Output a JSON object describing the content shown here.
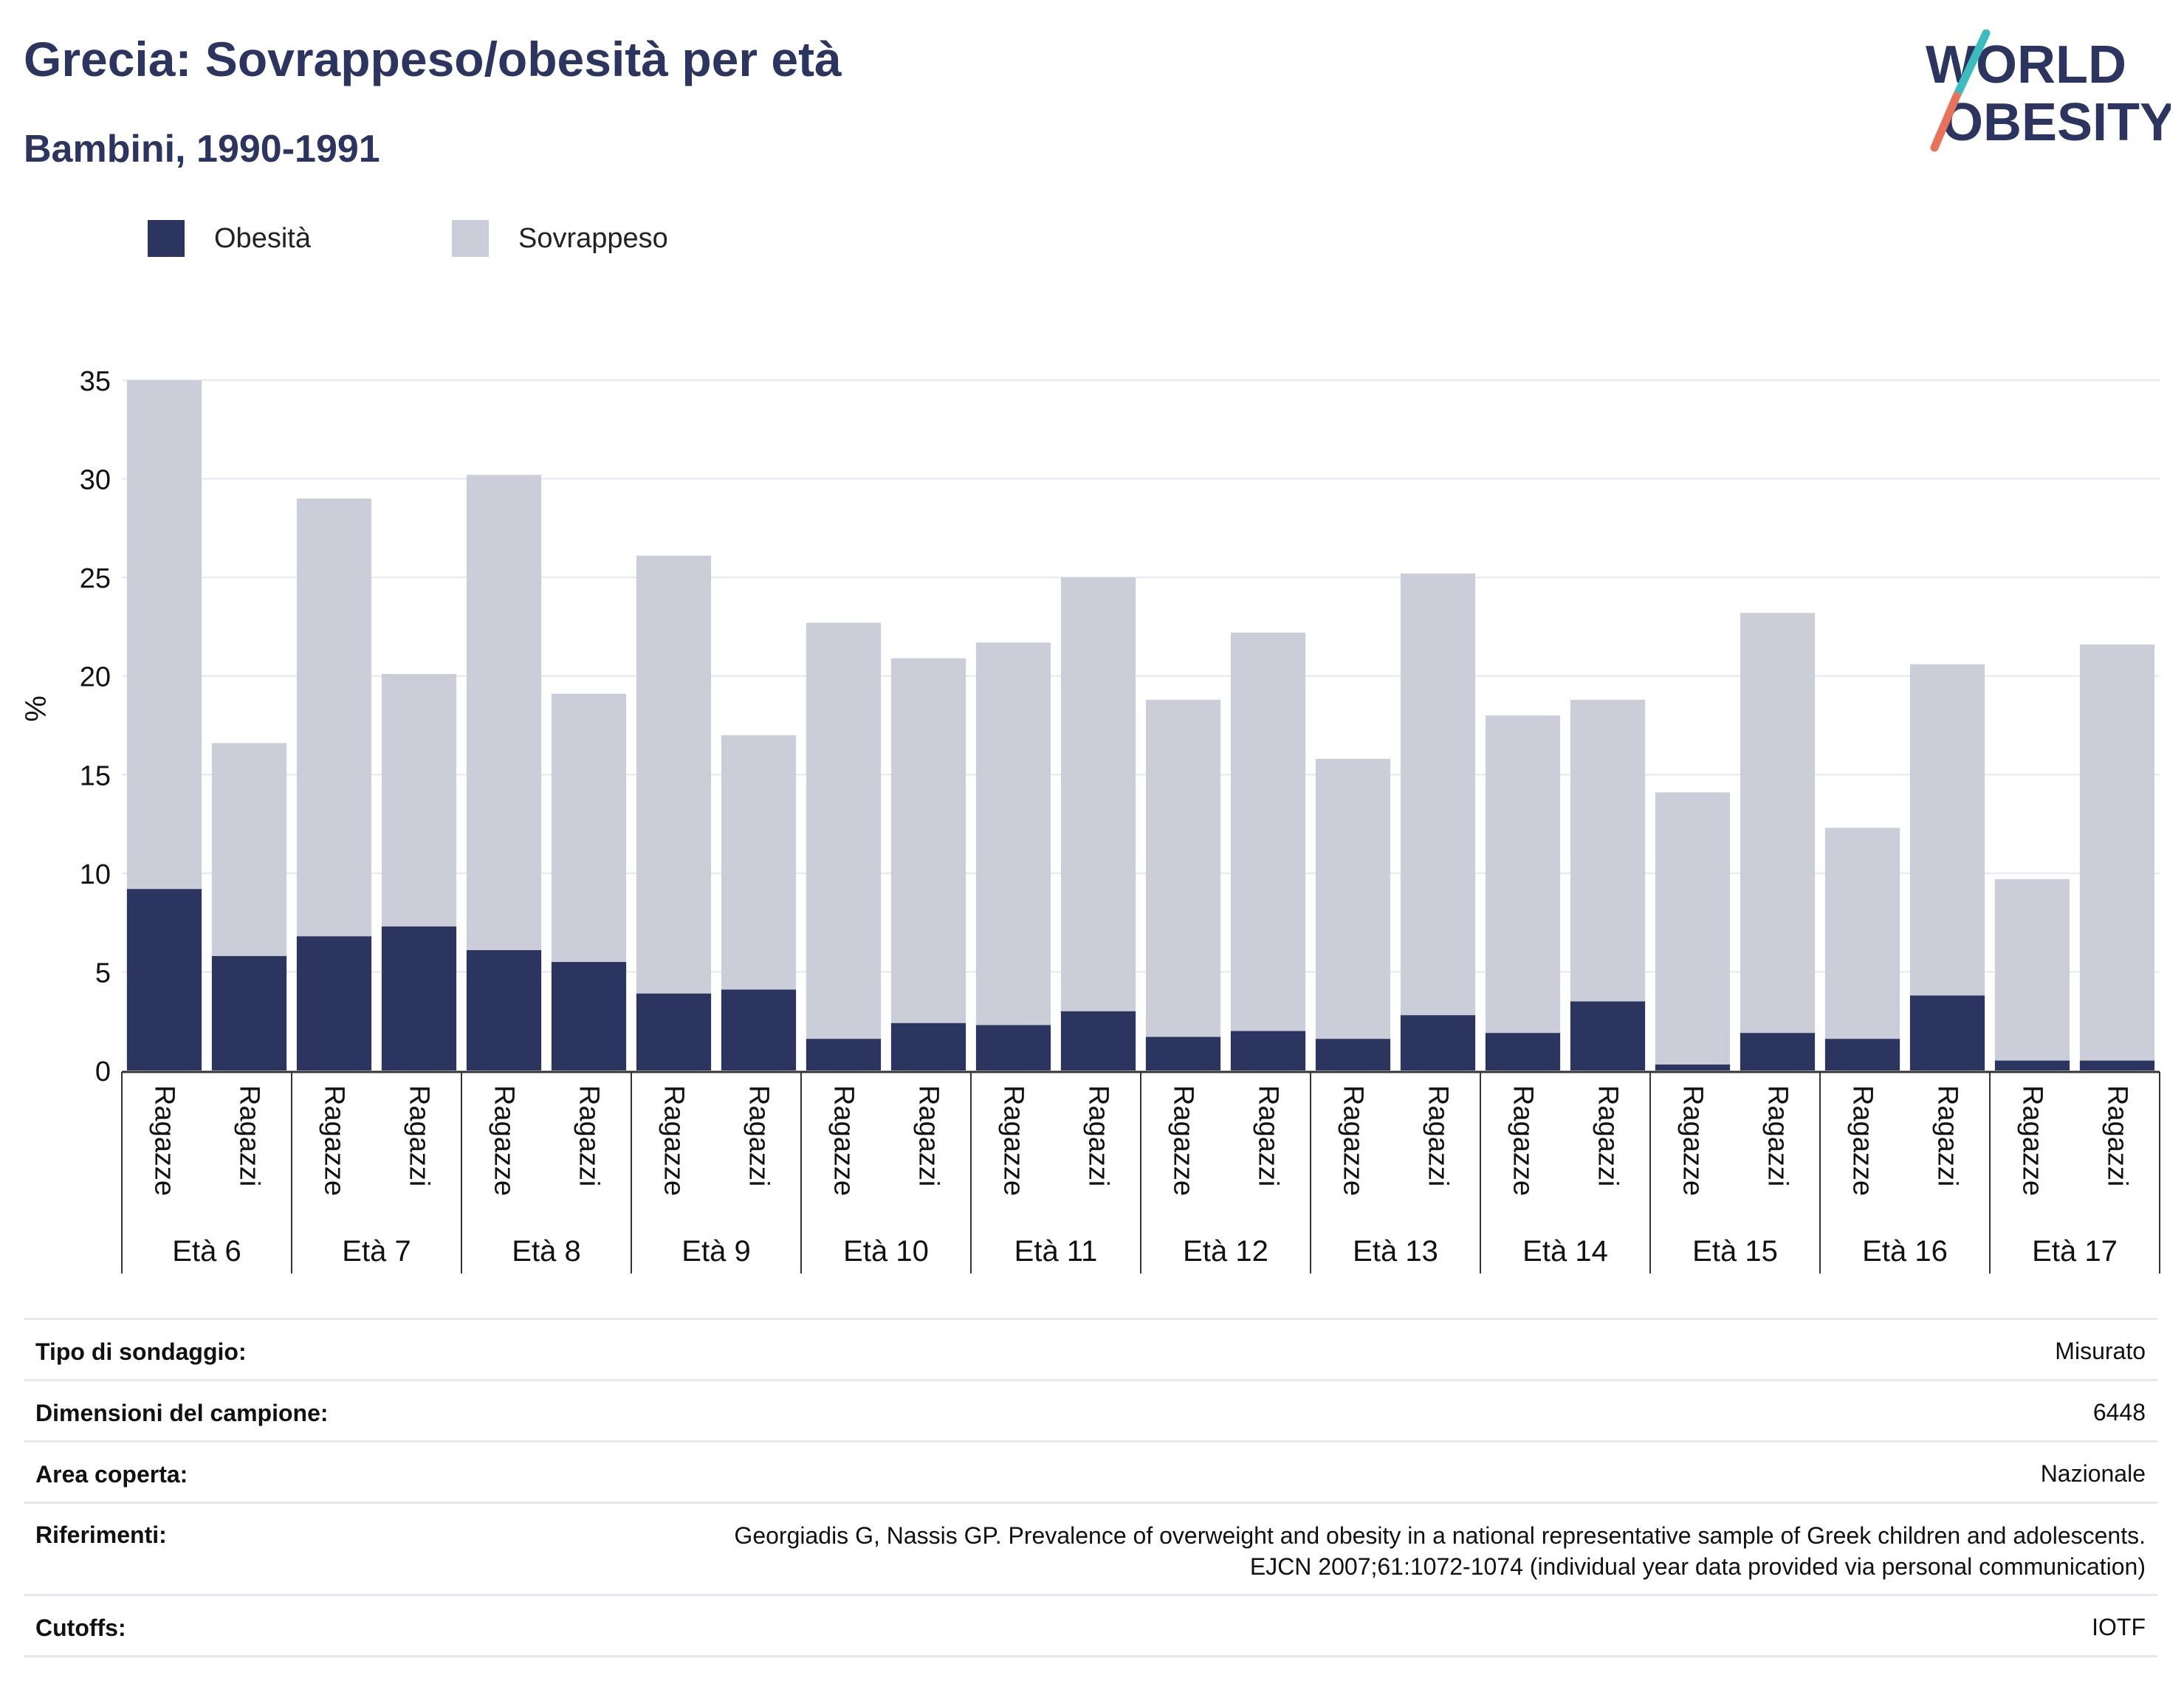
{
  "header": {
    "title": "Grecia: Sovrappeso/obesità per età",
    "subtitle": "Bambini, 1990-1991"
  },
  "logo": {
    "line1": "WORLD",
    "line2": "OBESITY",
    "slash_colors": [
      "#3dbcc0",
      "#e8735a"
    ],
    "text_color": "#2b3560"
  },
  "colors": {
    "obesity": "#2b3560",
    "overweight": "#cbcdd9",
    "grid": "#e6e8f0",
    "axis": "#333333"
  },
  "chart_data": {
    "type": "bar",
    "stacked": "overlap",
    "ylabel": "%",
    "ylim": [
      0,
      35
    ],
    "yticks": [
      0,
      5,
      10,
      15,
      20,
      25,
      30,
      35
    ],
    "grid": true,
    "legend_position": "top-left",
    "series": [
      {
        "name": "Obesità",
        "color": "#2b3560"
      },
      {
        "name": "Sovrappeso",
        "color": "#cbcdd9"
      }
    ],
    "groups": [
      {
        "label": "Età 6",
        "bars": [
          {
            "label": "Ragazze",
            "obesity": 9.2,
            "overweight": 35.0
          },
          {
            "label": "Ragazzi",
            "obesity": 5.8,
            "overweight": 16.6
          }
        ]
      },
      {
        "label": "Età 7",
        "bars": [
          {
            "label": "Ragazze",
            "obesity": 6.8,
            "overweight": 29.0
          },
          {
            "label": "Ragazzi",
            "obesity": 7.3,
            "overweight": 20.1
          }
        ]
      },
      {
        "label": "Età 8",
        "bars": [
          {
            "label": "Ragazze",
            "obesity": 6.1,
            "overweight": 30.2
          },
          {
            "label": "Ragazzi",
            "obesity": 5.5,
            "overweight": 19.1
          }
        ]
      },
      {
        "label": "Età 9",
        "bars": [
          {
            "label": "Ragazze",
            "obesity": 3.9,
            "overweight": 26.1
          },
          {
            "label": "Ragazzi",
            "obesity": 4.1,
            "overweight": 17.0
          }
        ]
      },
      {
        "label": "Età 10",
        "bars": [
          {
            "label": "Ragazze",
            "obesity": 1.6,
            "overweight": 22.7
          },
          {
            "label": "Ragazzi",
            "obesity": 2.4,
            "overweight": 20.9
          }
        ]
      },
      {
        "label": "Età 11",
        "bars": [
          {
            "label": "Ragazze",
            "obesity": 2.3,
            "overweight": 21.7
          },
          {
            "label": "Ragazzi",
            "obesity": 3.0,
            "overweight": 25.0
          }
        ]
      },
      {
        "label": "Età 12",
        "bars": [
          {
            "label": "Ragazze",
            "obesity": 1.7,
            "overweight": 18.8
          },
          {
            "label": "Ragazzi",
            "obesity": 2.0,
            "overweight": 22.2
          }
        ]
      },
      {
        "label": "Età 13",
        "bars": [
          {
            "label": "Ragazze",
            "obesity": 1.6,
            "overweight": 15.8
          },
          {
            "label": "Ragazzi",
            "obesity": 2.8,
            "overweight": 25.2
          }
        ]
      },
      {
        "label": "Età 14",
        "bars": [
          {
            "label": "Ragazze",
            "obesity": 1.9,
            "overweight": 18.0
          },
          {
            "label": "Ragazzi",
            "obesity": 3.5,
            "overweight": 18.8
          }
        ]
      },
      {
        "label": "Età 15",
        "bars": [
          {
            "label": "Ragazze",
            "obesity": 0.3,
            "overweight": 14.1
          },
          {
            "label": "Ragazzi",
            "obesity": 1.9,
            "overweight": 23.2
          }
        ]
      },
      {
        "label": "Età 16",
        "bars": [
          {
            "label": "Ragazze",
            "obesity": 1.6,
            "overweight": 12.3
          },
          {
            "label": "Ragazzi",
            "obesity": 3.8,
            "overweight": 20.6
          }
        ]
      },
      {
        "label": "Età 17",
        "bars": [
          {
            "label": "Ragazze",
            "obesity": 0.5,
            "overweight": 9.7
          },
          {
            "label": "Ragazzi",
            "obesity": 0.5,
            "overweight": 21.6
          }
        ]
      }
    ]
  },
  "info": {
    "survey_type": {
      "label": "Tipo di sondaggio:",
      "value": "Misurato"
    },
    "sample_size": {
      "label": "Dimensioni del campione:",
      "value": "6448"
    },
    "area": {
      "label": "Area coperta:",
      "value": "Nazionale"
    },
    "references": {
      "label": "Riferimenti:",
      "value_line1": "Georgiadis G, Nassis GP. Prevalence of overweight and obesity in a national representative sample of Greek children and adolescents.",
      "value_line2": "EJCN 2007;61:1072-1074 (individual year data provided via personal communication)"
    },
    "cutoffs": {
      "label": "Cutoffs:",
      "value": "IOTF"
    }
  }
}
